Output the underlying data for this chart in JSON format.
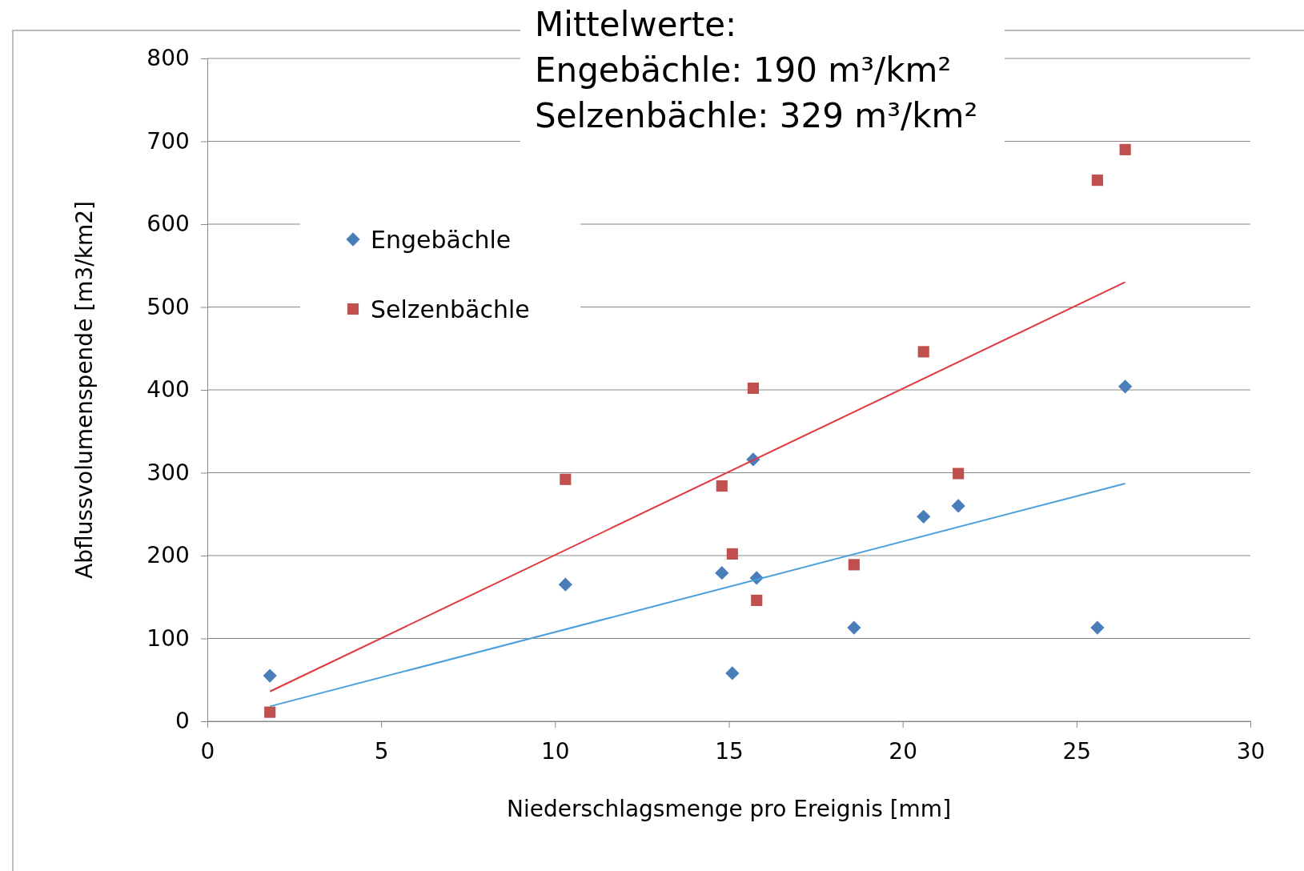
{
  "chart_data": {
    "type": "scatter",
    "xlabel": "Niederschlagsmenge pro Ereignis [mm]",
    "ylabel": "Abflussvolumenspende [m3/km2]",
    "xlim": [
      0,
      30
    ],
    "xticks": [
      0,
      5,
      10,
      15,
      20,
      25,
      30
    ],
    "ylim": [
      0,
      800
    ],
    "yticks": [
      0,
      100,
      200,
      300,
      400,
      500,
      600,
      700,
      800
    ],
    "grid": "y",
    "legend": "top left",
    "annotations": [
      "Mittelwerte:",
      "Engebächle: 190 m³/km²",
      "Selzenbächle: 329 m³/km²"
    ],
    "series": [
      {
        "name": "Engebächle",
        "color": "#4a7ebb",
        "marker": "diamond",
        "x": [
          1.8,
          10.3,
          14.8,
          15.1,
          15.7,
          15.8,
          18.6,
          20.6,
          21.6,
          25.6,
          26.4
        ],
        "values": [
          55,
          165,
          179,
          58,
          316,
          173,
          113,
          247,
          260,
          113,
          404
        ]
      },
      {
        "name": "Selzenbächle",
        "color": "#c0504d",
        "marker": "square",
        "x": [
          1.8,
          10.3,
          14.8,
          15.1,
          15.7,
          15.8,
          18.6,
          20.6,
          21.6,
          25.6,
          26.4
        ],
        "values": [
          11,
          292,
          284,
          202,
          402,
          146,
          189,
          446,
          299,
          653,
          690
        ]
      },
      {
        "type": "line",
        "color": "#4a9fdc",
        "marker": "none",
        "x": [
          1.8,
          26.4
        ],
        "values": [
          18,
          287
        ]
      },
      {
        "type": "line",
        "color": "#e0393e",
        "marker": "none",
        "x": [
          1.8,
          26.4
        ],
        "values": [
          36,
          530
        ]
      }
    ]
  }
}
